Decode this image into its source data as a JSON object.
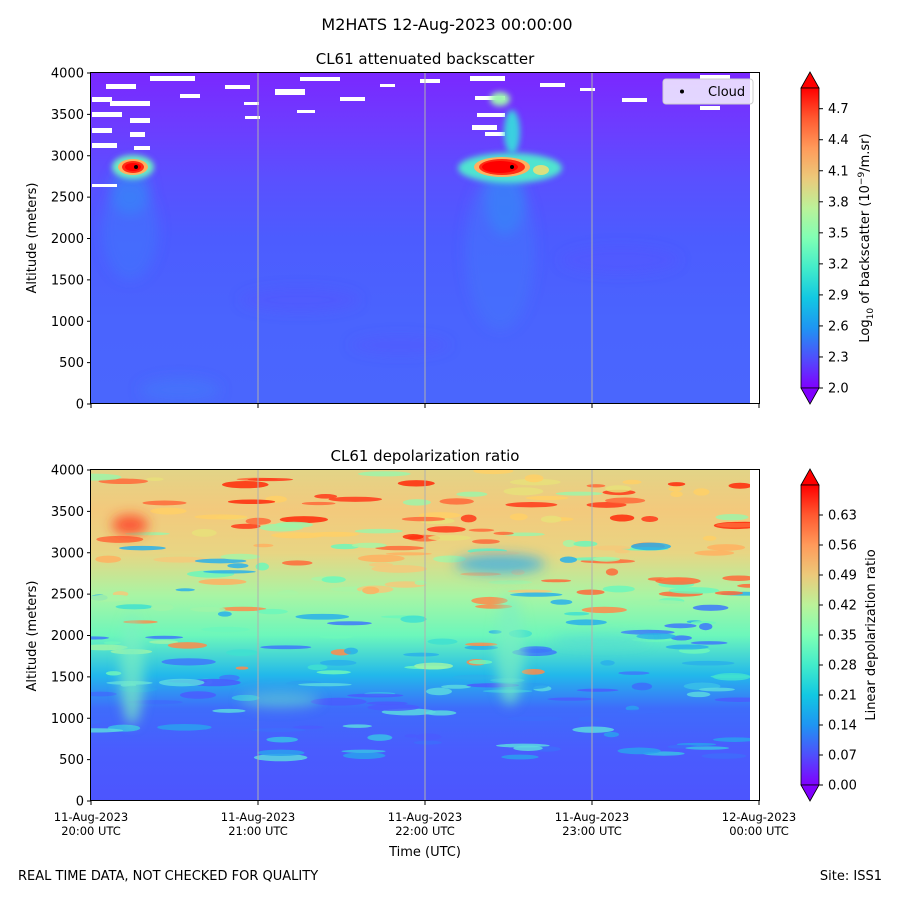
{
  "figure": {
    "suptitle": "M2HATS 12-Aug-2023 00:00:00",
    "footer_left": "REAL TIME DATA, NOT CHECKED FOR QUALITY",
    "footer_right": "Site: ISS1"
  },
  "chart_data": [
    {
      "type": "heatmap",
      "title": "CL61 attenuated backscatter",
      "xlabel": "",
      "ylabel": "Altitude (meters)",
      "ylim": [
        0,
        4000
      ],
      "y_ticks": [
        0,
        500,
        1000,
        1500,
        2000,
        2500,
        3000,
        3500,
        4000
      ],
      "x_gridlines": true,
      "colormap": "rainbow",
      "colorbar": {
        "label_prefix": "Log",
        "label_sub": "10",
        "label_mid": " of backscatter (10",
        "label_sup": "−9",
        "label_suffix": "/m.sr)",
        "range": [
          2.0,
          4.9
        ],
        "ticks": [
          "2.0",
          "2.3",
          "2.6",
          "2.9",
          "3.2",
          "3.5",
          "3.8",
          "4.1",
          "4.4",
          "4.7"
        ],
        "extend": "both"
      },
      "background_value": 2.3,
      "features": [
        {
          "name": "cloud-layer-1",
          "time": "20:15 UTC",
          "altitude": 2850,
          "value": 4.9
        },
        {
          "name": "cloud-layer-2",
          "time": "22:30 UTC",
          "altitude": 2850,
          "value": 4.9
        },
        {
          "name": "noise-no-data-region",
          "altitude_range": [
            3400,
            4000
          ],
          "value": 2.1
        }
      ],
      "cloud_markers": [
        {
          "time": "20:16 UTC",
          "altitude": 2850
        },
        {
          "time": "22:31 UTC",
          "altitude": 2850
        }
      ],
      "legend": {
        "entries": [
          "Cloud"
        ],
        "placement": "top-right"
      }
    },
    {
      "type": "heatmap",
      "title": "CL61 depolarization ratio",
      "xlabel": "Time (UTC)",
      "ylabel": "Altitude (meters)",
      "ylim": [
        0,
        4000
      ],
      "y_ticks": [
        0,
        500,
        1000,
        1500,
        2000,
        2500,
        3000,
        3500,
        4000
      ],
      "x_ticks": [
        [
          "11-Aug-2023",
          "20:00 UTC"
        ],
        [
          "11-Aug-2023",
          "21:00 UTC"
        ],
        [
          "11-Aug-2023",
          "22:00 UTC"
        ],
        [
          "11-Aug-2023",
          "23:00 UTC"
        ],
        [
          "12-Aug-2023",
          "00:00 UTC"
        ]
      ],
      "x_gridlines": true,
      "colormap": "rainbow",
      "colorbar": {
        "label": "Linear depolarization ratio",
        "range": [
          0.0,
          0.7
        ],
        "ticks": [
          "0.00",
          "0.07",
          "0.14",
          "0.21",
          "0.28",
          "0.35",
          "0.42",
          "0.49",
          "0.56",
          "0.63"
        ],
        "extend": "both"
      },
      "profile_by_altitude": [
        {
          "altitude": 0,
          "value": 0.09
        },
        {
          "altitude": 1000,
          "value": 0.14
        },
        {
          "altitude": 1500,
          "value": 0.22
        },
        {
          "altitude": 2000,
          "value": 0.3
        },
        {
          "altitude": 2500,
          "value": 0.4
        },
        {
          "altitude": 3000,
          "value": 0.5
        },
        {
          "altitude": 3500,
          "value": 0.52
        },
        {
          "altitude": 4000,
          "value": 0.55
        }
      ]
    }
  ]
}
